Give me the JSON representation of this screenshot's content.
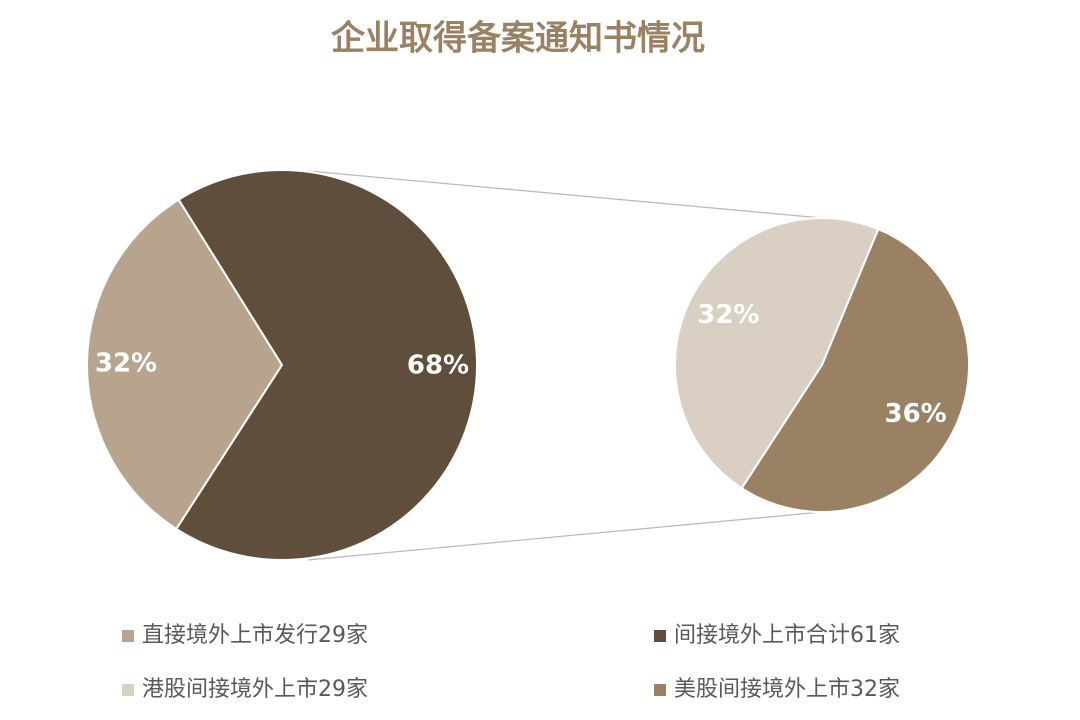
{
  "chart_data": [
    {
      "type": "pie",
      "title": "企业取得备案通知书情况",
      "categories": [
        "直接境外上市发行29家",
        "间接境外上市合计61家"
      ],
      "values": [
        32,
        68
      ],
      "value_labels": [
        "32%",
        "68%"
      ],
      "colors": [
        "#b8a48c",
        "#5f4e3b"
      ]
    },
    {
      "type": "pie",
      "categories": [
        "港股间接境外上市29家",
        "美股间接境外上市32家"
      ],
      "values": [
        32,
        36
      ],
      "value_labels": [
        "32%",
        "36%"
      ],
      "colors": [
        "#d9cfc3",
        "#9a8163"
      ]
    }
  ]
}
